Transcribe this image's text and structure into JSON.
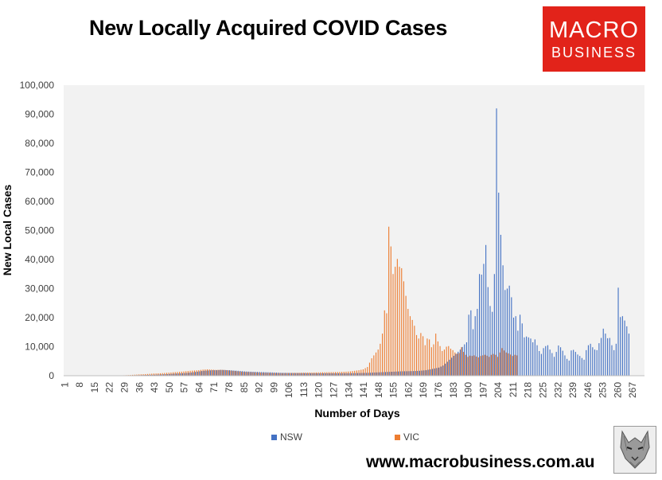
{
  "header": {
    "title": "New Locally Acquired COVID Cases"
  },
  "logo": {
    "line1": "MACRO",
    "line2": "BUSINESS",
    "bg_color": "#e2231a"
  },
  "footer": {
    "url": "www.macrobusiness.com.au",
    "wolf_logo": "wolf-portrait-icon"
  },
  "chart_data": {
    "type": "bar",
    "title": "New Locally Acquired COVID Cases",
    "xlabel": "Number of Days",
    "ylabel": "New Local Cases",
    "ylim": [
      0,
      100000
    ],
    "yticks": [
      0,
      10000,
      20000,
      30000,
      40000,
      50000,
      60000,
      70000,
      80000,
      90000,
      100000
    ],
    "ytick_labels": [
      "0",
      "10,000",
      "20,000",
      "30,000",
      "40,000",
      "50,000",
      "60,000",
      "70,000",
      "80,000",
      "90,000",
      "100,000"
    ],
    "xlim": [
      1,
      272
    ],
    "xtick_labels": [
      "1",
      "8",
      "15",
      "22",
      "29",
      "36",
      "43",
      "50",
      "57",
      "64",
      "71",
      "78",
      "85",
      "92",
      "99",
      "106",
      "113",
      "120",
      "127",
      "134",
      "141",
      "148",
      "155",
      "162",
      "169",
      "176",
      "183",
      "190",
      "197",
      "204",
      "211",
      "218",
      "225",
      "232",
      "239",
      "246",
      "253",
      "260",
      "267"
    ],
    "grid": false,
    "legend_position": "bottom",
    "colors": {
      "NSW": "#4472c4",
      "VIC": "#ed7d31",
      "plot_bg": "#f2f2f2"
    },
    "series": [
      {
        "name": "NSW",
        "points": [
          [
            1,
            20
          ],
          [
            8,
            30
          ],
          [
            15,
            40
          ],
          [
            22,
            60
          ],
          [
            29,
            100
          ],
          [
            36,
            200
          ],
          [
            40,
            300
          ],
          [
            43,
            350
          ],
          [
            46,
            450
          ],
          [
            50,
            600
          ],
          [
            53,
            750
          ],
          [
            57,
            900
          ],
          [
            60,
            1100
          ],
          [
            62,
            1300
          ],
          [
            64,
            1500
          ],
          [
            66,
            1700
          ],
          [
            68,
            1800
          ],
          [
            70,
            1900
          ],
          [
            72,
            1900
          ],
          [
            74,
            2000
          ],
          [
            76,
            1950
          ],
          [
            78,
            1900
          ],
          [
            80,
            1800
          ],
          [
            82,
            1700
          ],
          [
            85,
            1500
          ],
          [
            88,
            1400
          ],
          [
            92,
            1300
          ],
          [
            96,
            1200
          ],
          [
            99,
            1100
          ],
          [
            103,
            1000
          ],
          [
            106,
            950
          ],
          [
            110,
            900
          ],
          [
            113,
            900
          ],
          [
            117,
            850
          ],
          [
            120,
            850
          ],
          [
            124,
            850
          ],
          [
            127,
            850
          ],
          [
            131,
            850
          ],
          [
            134,
            850
          ],
          [
            137,
            900
          ],
          [
            140,
            950
          ],
          [
            143,
            1000
          ],
          [
            146,
            1100
          ],
          [
            149,
            1200
          ],
          [
            152,
            1300
          ],
          [
            155,
            1400
          ],
          [
            158,
            1500
          ],
          [
            161,
            1550
          ],
          [
            164,
            1600
          ],
          [
            167,
            1700
          ],
          [
            170,
            1900
          ],
          [
            172,
            2200
          ],
          [
            174,
            2500
          ],
          [
            176,
            2800
          ],
          [
            178,
            3500
          ],
          [
            180,
            4800
          ],
          [
            182,
            6200
          ],
          [
            184,
            7500
          ],
          [
            186,
            9000
          ],
          [
            188,
            10800
          ],
          [
            189,
            11500
          ],
          [
            190,
            21000
          ],
          [
            191,
            22500
          ],
          [
            192,
            16000
          ],
          [
            193,
            20500
          ],
          [
            194,
            23000
          ],
          [
            195,
            35000
          ],
          [
            196,
            34800
          ],
          [
            197,
            38500
          ],
          [
            198,
            45000
          ],
          [
            199,
            30500
          ],
          [
            200,
            24000
          ],
          [
            201,
            22000
          ],
          [
            202,
            35000
          ],
          [
            203,
            92000
          ],
          [
            204,
            63000
          ],
          [
            205,
            48500
          ],
          [
            206,
            38000
          ],
          [
            207,
            29500
          ],
          [
            208,
            30000
          ],
          [
            209,
            31000
          ],
          [
            210,
            27000
          ],
          [
            211,
            20000
          ],
          [
            212,
            20500
          ],
          [
            213,
            15500
          ],
          [
            214,
            21000
          ],
          [
            215,
            18000
          ],
          [
            216,
            13200
          ],
          [
            217,
            13500
          ],
          [
            218,
            13200
          ],
          [
            219,
            12800
          ],
          [
            220,
            11500
          ],
          [
            221,
            12500
          ],
          [
            222,
            10500
          ],
          [
            223,
            8500
          ],
          [
            224,
            7500
          ],
          [
            225,
            9500
          ],
          [
            226,
            10200
          ],
          [
            227,
            10500
          ],
          [
            228,
            9000
          ],
          [
            229,
            7800
          ],
          [
            230,
            6500
          ],
          [
            231,
            8200
          ],
          [
            232,
            10400
          ],
          [
            233,
            9800
          ],
          [
            234,
            8600
          ],
          [
            235,
            7000
          ],
          [
            236,
            5800
          ],
          [
            237,
            5200
          ],
          [
            238,
            8700
          ],
          [
            239,
            8900
          ],
          [
            240,
            8200
          ],
          [
            241,
            7300
          ],
          [
            242,
            6800
          ],
          [
            243,
            6100
          ],
          [
            244,
            5500
          ],
          [
            245,
            8800
          ],
          [
            246,
            10500
          ],
          [
            247,
            11000
          ],
          [
            248,
            9800
          ],
          [
            249,
            9000
          ],
          [
            250,
            8800
          ],
          [
            251,
            11200
          ],
          [
            252,
            13000
          ],
          [
            253,
            16200
          ],
          [
            254,
            14500
          ],
          [
            255,
            12900
          ],
          [
            256,
            13000
          ],
          [
            257,
            10500
          ],
          [
            258,
            8800
          ],
          [
            259,
            11000
          ],
          [
            260,
            30300
          ],
          [
            261,
            20200
          ],
          [
            262,
            20500
          ],
          [
            263,
            19000
          ],
          [
            264,
            17000
          ],
          [
            265,
            14500
          ]
        ]
      },
      {
        "name": "VIC",
        "points": [
          [
            1,
            20
          ],
          [
            8,
            30
          ],
          [
            15,
            40
          ],
          [
            22,
            60
          ],
          [
            29,
            150
          ],
          [
            33,
            300
          ],
          [
            36,
            450
          ],
          [
            40,
            600
          ],
          [
            43,
            750
          ],
          [
            46,
            850
          ],
          [
            50,
            1050
          ],
          [
            53,
            1250
          ],
          [
            56,
            1400
          ],
          [
            58,
            1550
          ],
          [
            60,
            1700
          ],
          [
            62,
            1800
          ],
          [
            64,
            1900
          ],
          [
            66,
            2100
          ],
          [
            68,
            2200
          ],
          [
            70,
            2100
          ],
          [
            72,
            2000
          ],
          [
            74,
            2050
          ],
          [
            76,
            2000
          ],
          [
            78,
            1850
          ],
          [
            80,
            1700
          ],
          [
            82,
            1550
          ],
          [
            85,
            1350
          ],
          [
            88,
            1250
          ],
          [
            91,
            1150
          ],
          [
            94,
            1050
          ],
          [
            97,
            1000
          ],
          [
            100,
            950
          ],
          [
            103,
            900
          ],
          [
            106,
            950
          ],
          [
            110,
            1000
          ],
          [
            113,
            1050
          ],
          [
            117,
            1100
          ],
          [
            120,
            1150
          ],
          [
            124,
            1200
          ],
          [
            127,
            1250
          ],
          [
            130,
            1300
          ],
          [
            133,
            1400
          ],
          [
            135,
            1500
          ],
          [
            137,
            1700
          ],
          [
            139,
            1900
          ],
          [
            141,
            2200
          ],
          [
            143,
            3000
          ],
          [
            144,
            4500
          ],
          [
            145,
            6000
          ],
          [
            146,
            7000
          ],
          [
            147,
            8000
          ],
          [
            148,
            9000
          ],
          [
            149,
            11000
          ],
          [
            150,
            14500
          ],
          [
            151,
            22500
          ],
          [
            152,
            21500
          ],
          [
            153,
            51300
          ],
          [
            154,
            44500
          ],
          [
            155,
            35000
          ],
          [
            156,
            37500
          ],
          [
            157,
            40200
          ],
          [
            158,
            37500
          ],
          [
            159,
            37000
          ],
          [
            160,
            32500
          ],
          [
            161,
            27500
          ],
          [
            162,
            23000
          ],
          [
            163,
            20500
          ],
          [
            164,
            19200
          ],
          [
            165,
            17200
          ],
          [
            166,
            14000
          ],
          [
            167,
            12800
          ],
          [
            168,
            14700
          ],
          [
            169,
            13600
          ],
          [
            170,
            10500
          ],
          [
            171,
            12800
          ],
          [
            172,
            12500
          ],
          [
            173,
            9800
          ],
          [
            174,
            10800
          ],
          [
            175,
            14500
          ],
          [
            176,
            11800
          ],
          [
            177,
            10200
          ],
          [
            178,
            8500
          ],
          [
            179,
            9000
          ],
          [
            180,
            10000
          ],
          [
            181,
            10200
          ],
          [
            182,
            9300
          ],
          [
            183,
            8800
          ],
          [
            184,
            8000
          ],
          [
            185,
            7600
          ],
          [
            186,
            7800
          ],
          [
            187,
            9800
          ],
          [
            188,
            8200
          ],
          [
            189,
            7200
          ],
          [
            190,
            6500
          ],
          [
            191,
            6900
          ],
          [
            192,
            6800
          ],
          [
            193,
            7000
          ],
          [
            194,
            6600
          ],
          [
            195,
            6300
          ],
          [
            196,
            6800
          ],
          [
            197,
            7000
          ],
          [
            198,
            7200
          ],
          [
            199,
            6900
          ],
          [
            200,
            6500
          ],
          [
            201,
            7200
          ],
          [
            202,
            7500
          ],
          [
            203,
            7200
          ],
          [
            204,
            6500
          ],
          [
            205,
            8000
          ],
          [
            206,
            9500
          ],
          [
            207,
            8700
          ],
          [
            208,
            8000
          ],
          [
            209,
            7700
          ],
          [
            210,
            7300
          ],
          [
            211,
            6800
          ],
          [
            212,
            7200
          ],
          [
            213,
            7000
          ]
        ]
      }
    ]
  }
}
